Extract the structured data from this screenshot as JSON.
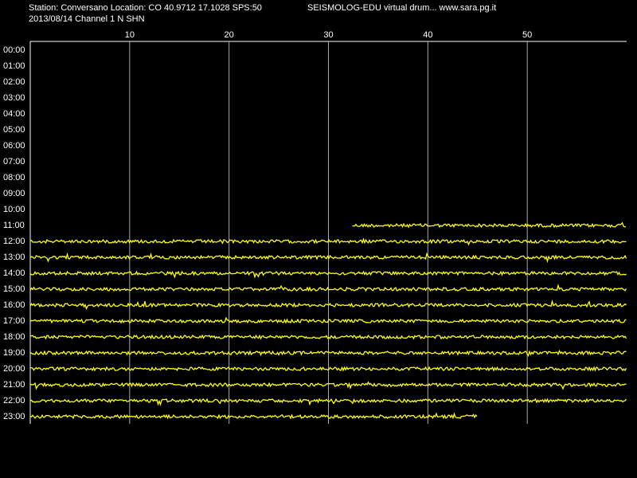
{
  "header": {
    "station": "Station: Conversano Location: CO 40.9712 17.1028 SPS:50",
    "program": "SEISMOLOG-EDU virtual drum... www.sara.pg.it",
    "date_channel": "2013/08/14  Channel 1 N SHN"
  },
  "chart_data": {
    "type": "helicorder",
    "color": "#ffff00",
    "categories": [
      "00:00",
      "01:00",
      "02:00",
      "03:00",
      "04:00",
      "05:00",
      "06:00",
      "07:00",
      "08:00",
      "09:00",
      "10:00",
      "11:00",
      "12:00",
      "13:00",
      "14:00",
      "15:00",
      "16:00",
      "17:00",
      "18:00",
      "19:00",
      "20:00",
      "21:00",
      "22:00",
      "23:00"
    ],
    "trace_start": [
      null,
      null,
      null,
      null,
      null,
      null,
      null,
      null,
      null,
      null,
      null,
      32.4,
      0,
      0,
      0,
      0,
      0,
      0,
      0,
      0,
      0,
      0,
      0,
      0
    ],
    "trace_end": [
      null,
      null,
      null,
      null,
      null,
      null,
      null,
      null,
      null,
      null,
      null,
      60,
      60,
      60,
      60,
      60,
      60,
      60,
      60,
      60,
      60,
      60,
      60,
      45
    ],
    "xlim": [
      0,
      60
    ],
    "xticks": [
      10,
      20,
      30,
      40,
      50
    ],
    "grid": true
  }
}
